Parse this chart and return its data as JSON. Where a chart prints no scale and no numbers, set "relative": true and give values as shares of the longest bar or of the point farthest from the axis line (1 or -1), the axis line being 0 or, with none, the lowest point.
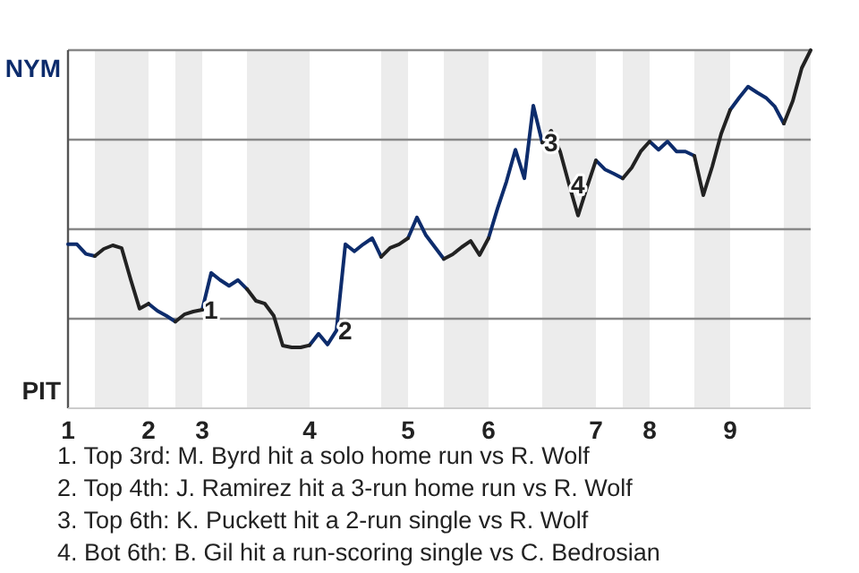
{
  "chart_data": {
    "type": "line",
    "relative": true,
    "categories": [
      "1",
      null,
      null,
      null,
      null,
      null,
      null,
      null,
      null,
      "2",
      null,
      null,
      null,
      null,
      null,
      "3",
      null,
      null,
      null,
      null,
      null,
      null,
      null,
      null,
      null,
      null,
      null,
      "4",
      null,
      null,
      null,
      null,
      null,
      null,
      null,
      null,
      null,
      null,
      "5",
      null,
      null,
      null,
      null,
      null,
      null,
      null,
      null,
      "6",
      null,
      null,
      null,
      null,
      null,
      null,
      null,
      null,
      null,
      null,
      null,
      "7",
      null,
      null,
      null,
      null,
      null,
      "8",
      null,
      null,
      null,
      null,
      null,
      null,
      null,
      null,
      "9",
      null,
      null,
      null,
      null,
      null,
      null,
      null,
      null,
      null
    ],
    "marker": "none",
    "line_style": "solid",
    "series": [
      {
        "color": "#0d2c6c",
        "values": [
          0.458,
          0.458,
          0.431,
          0.425,
          null,
          null,
          null,
          null,
          null,
          0.292,
          0.272,
          0.258,
          0.242,
          null,
          null,
          0.275,
          0.378,
          0.358,
          0.342,
          0.358,
          0.333,
          null,
          null,
          null,
          null,
          null,
          null,
          0.176,
          0.208,
          0.178,
          0.217,
          0.458,
          0.438,
          0.458,
          0.475,
          0.423,
          null,
          null,
          0.475,
          0.533,
          0.483,
          0.45,
          0.417,
          null,
          null,
          null,
          null,
          0.475,
          0.558,
          0.633,
          0.722,
          0.642,
          0.845,
          0.742,
          null,
          null,
          null,
          null,
          null,
          0.692,
          0.667,
          0.655,
          0.642,
          null,
          null,
          0.745,
          0.722,
          0.745,
          0.717,
          0.717,
          0.705,
          null,
          null,
          null,
          0.833,
          0.867,
          0.898,
          0.882,
          0.867,
          0.842,
          0.795,
          null,
          null,
          null
        ]
      },
      {
        "color": "#222222",
        "values": [
          null,
          null,
          null,
          0.425,
          0.445,
          0.455,
          0.447,
          0.36,
          0.278,
          0.292,
          null,
          null,
          0.242,
          0.262,
          0.27,
          0.275,
          null,
          null,
          null,
          null,
          0.333,
          0.3,
          0.292,
          0.258,
          0.175,
          0.17,
          0.17,
          0.176,
          null,
          null,
          null,
          null,
          null,
          null,
          null,
          0.423,
          0.448,
          0.458,
          0.475,
          null,
          null,
          null,
          0.417,
          0.43,
          0.45,
          0.467,
          0.428,
          0.475,
          null,
          null,
          null,
          null,
          null,
          0.742,
          0.775,
          0.717,
          0.625,
          0.538,
          0.617,
          0.692,
          null,
          null,
          0.642,
          0.672,
          0.717,
          0.745,
          null,
          null,
          null,
          null,
          0.705,
          0.595,
          0.675,
          0.767,
          0.833,
          null,
          null,
          null,
          null,
          null,
          0.795,
          0.858,
          0.95,
          1
        ]
      }
    ],
    "annotations": [
      "NYM",
      "PIT",
      {
        "text": "1",
        "y": 0.275
      },
      {
        "text": "2",
        "y": 0.217
      },
      {
        "text": "3",
        "y": 0.742
      },
      {
        "text": "4",
        "y": 0.625
      },
      "1. Top 3rd: M. Byrd hit a solo home run vs R. Wolf",
      "2. Top 4th: J. Ramirez hit a 3-run home run vs R. Wolf",
      "3. Top 6th: K. Puckett hit a 2-run single vs R. Wolf",
      "4. Bot 6th: B. Gil hit a run-scoring single vs C. Bedrosian"
    ]
  }
}
